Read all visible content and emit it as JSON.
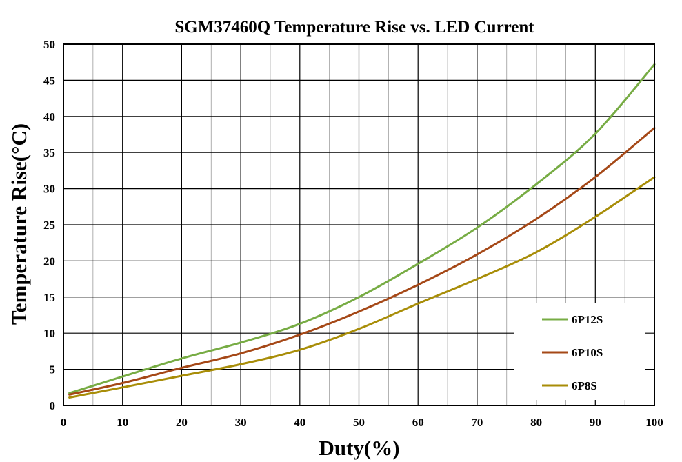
{
  "chart_data": {
    "type": "line",
    "title": "SGM37460Q Temperature  Rise vs. LED Current",
    "xlabel": "Duty(%)",
    "ylabel": "Temperature Rise(°C)",
    "xlim": [
      0,
      100
    ],
    "ylim": [
      0,
      50
    ],
    "xticks": [
      0,
      10,
      20,
      30,
      40,
      50,
      60,
      70,
      80,
      90,
      100
    ],
    "yticks": [
      0,
      5,
      10,
      15,
      20,
      25,
      30,
      35,
      40,
      45,
      50
    ],
    "grid": true,
    "legend_position": "bottom-right",
    "series": [
      {
        "name": "6P12S",
        "color": "#77ac44",
        "x": [
          1,
          10,
          20,
          30,
          40,
          50,
          60,
          70,
          80,
          90,
          100
        ],
        "y": [
          1.7,
          4.0,
          6.5,
          8.7,
          11.3,
          15.0,
          19.6,
          24.6,
          30.6,
          37.6,
          47.2
        ]
      },
      {
        "name": "6P10S",
        "color": "#a54817",
        "x": [
          1,
          10,
          20,
          30,
          40,
          50,
          60,
          70,
          80,
          90,
          100
        ],
        "y": [
          1.5,
          3.1,
          5.2,
          7.2,
          9.8,
          13.0,
          16.7,
          20.9,
          25.8,
          31.6,
          38.4
        ]
      },
      {
        "name": "6P8S",
        "color": "#a88d08",
        "x": [
          1,
          10,
          20,
          30,
          40,
          50,
          60,
          70,
          80,
          90,
          100
        ],
        "y": [
          1.1,
          2.5,
          4.1,
          5.7,
          7.7,
          10.6,
          14.1,
          17.5,
          21.2,
          26.1,
          31.6
        ]
      }
    ]
  }
}
